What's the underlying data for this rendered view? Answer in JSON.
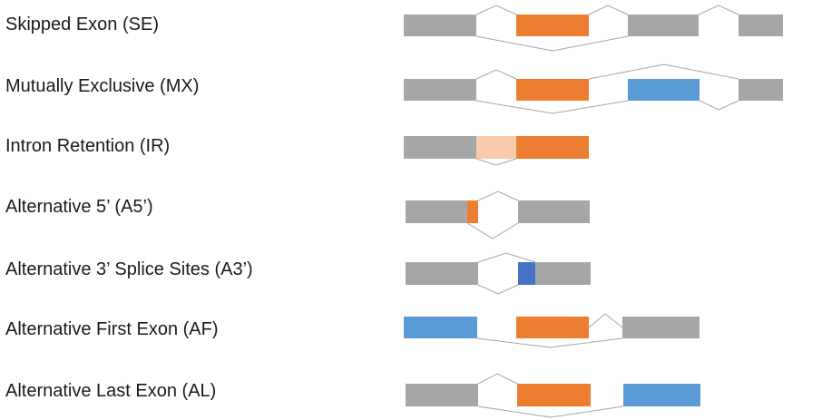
{
  "colors": {
    "constitutive_exon": "#a6a6a6",
    "alt_exon_orange": "#ed7d31",
    "alt_exon_blue": "#5b9bd5",
    "retained_intron": "#f8cbad",
    "alt_splice_dark_blue": "#4472c4",
    "junction_line": "#a6a6a6",
    "label_text": "#1a1a1a"
  },
  "rows": [
    {
      "label": "Skipped Exon (SE)",
      "code": "SE"
    },
    {
      "label": "Mutually Exclusive (MX)",
      "code": "MX"
    },
    {
      "label": "Intron Retention (IR)",
      "code": "IR"
    },
    {
      "label": "Alternative 5’ (A5’)",
      "code": "A5"
    },
    {
      "label": "Alternative 3’ Splice Sites (A3’)",
      "code": "A3"
    },
    {
      "label": "Alternative First Exon (AF)",
      "code": "AF"
    },
    {
      "label": "Alternative Last Exon (AL)",
      "code": "AL"
    }
  ]
}
